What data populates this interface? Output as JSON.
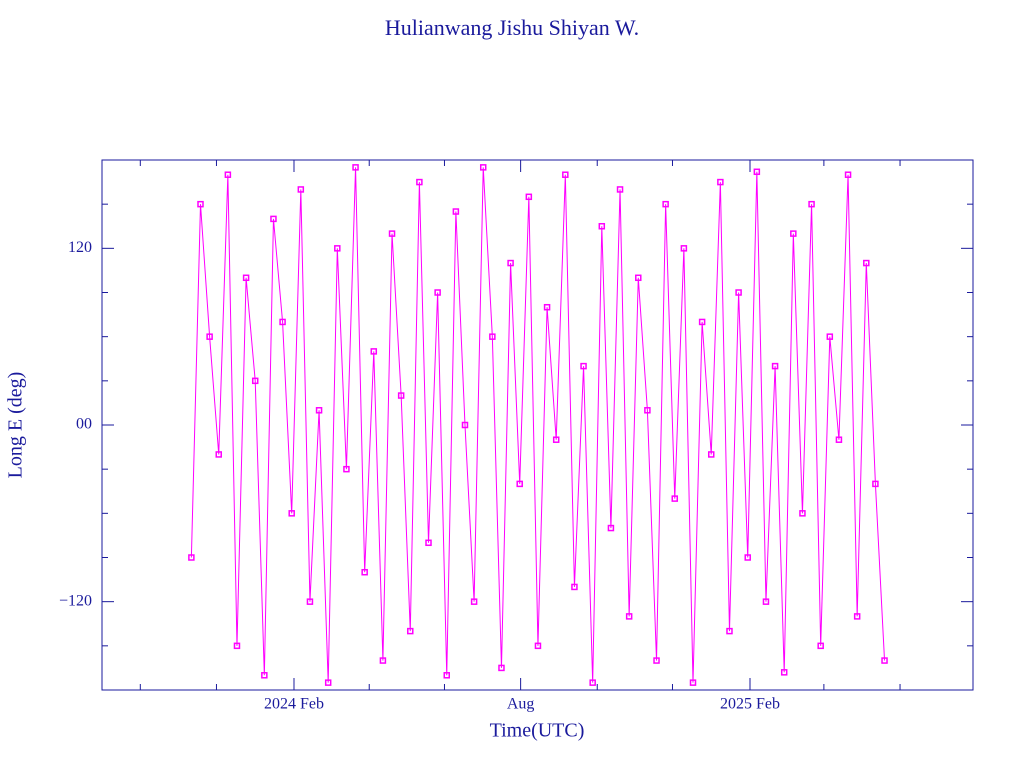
{
  "chart_data": {
    "type": "line",
    "title": "Hulianwang Jishu Shiyan W.",
    "xlabel": "Time(UTC)",
    "ylabel": "Long E (deg)",
    "color": "#ff00ff",
    "axis_color": "#1a1a9c",
    "markers": true,
    "xlim": [
      2023.664,
      2025.574
    ],
    "xticks": [
      {
        "value": 2024.085,
        "label": "2024 Feb"
      },
      {
        "value": 2024.582,
        "label": "Aug"
      },
      {
        "value": 2025.085,
        "label": "2025 Feb"
      }
    ],
    "xminor_ticks": [
      2023.748,
      2023.915,
      2024.25,
      2024.415,
      2024.75,
      2024.915,
      2025.247,
      2025.414
    ],
    "ylim": [
      -180,
      180
    ],
    "yticks": [
      {
        "value": 120,
        "label": "120"
      },
      {
        "value": 0,
        "label": "00"
      },
      {
        "value": -120,
        "label": "−120"
      }
    ],
    "yminor_ticks": [
      150,
      90,
      60,
      30,
      -30,
      -60,
      -90,
      -150
    ],
    "x": [
      2023.86,
      2023.88,
      2023.9,
      2023.92,
      2023.94,
      2023.96,
      2023.98,
      2024.0,
      2024.02,
      2024.04,
      2024.06,
      2024.08,
      2024.1,
      2024.12,
      2024.14,
      2024.16,
      2024.18,
      2024.2,
      2024.22,
      2024.24,
      2024.26,
      2024.28,
      2024.3,
      2024.32,
      2024.34,
      2024.36,
      2024.38,
      2024.4,
      2024.42,
      2024.44,
      2024.46,
      2024.48,
      2024.5,
      2024.52,
      2024.54,
      2024.56,
      2024.58,
      2024.6,
      2024.62,
      2024.64,
      2024.66,
      2024.68,
      2024.7,
      2024.72,
      2024.74,
      2024.76,
      2024.78,
      2024.8,
      2024.82,
      2024.84,
      2024.86,
      2024.88,
      2024.9,
      2024.92,
      2024.94,
      2024.96,
      2024.98,
      2025.0,
      2025.02,
      2025.04,
      2025.06,
      2025.08,
      2025.1,
      2025.12,
      2025.14,
      2025.16,
      2025.18,
      2025.2,
      2025.22,
      2025.24,
      2025.26,
      2025.28,
      2025.3,
      2025.32,
      2025.34,
      2025.36,
      2025.38
    ],
    "values": [
      -90,
      150,
      60,
      -20,
      170,
      -150,
      100,
      30,
      -170,
      140,
      70,
      -60,
      160,
      -120,
      10,
      -175,
      120,
      -30,
      175,
      -100,
      50,
      -160,
      130,
      20,
      -140,
      165,
      -80,
      90,
      -170,
      145,
      0,
      -120,
      175,
      60,
      -165,
      110,
      -40,
      155,
      -150,
      80,
      -10,
      170,
      -110,
      40,
      -175,
      135,
      -70,
      160,
      -130,
      100,
      10,
      -160,
      150,
      -50,
      120,
      -175,
      70,
      -20,
      165,
      -140,
      90,
      -90,
      172,
      -120,
      40,
      -168,
      130,
      -60,
      150,
      -150,
      60,
      -10,
      170,
      -130,
      110,
      -40,
      -160
    ]
  }
}
